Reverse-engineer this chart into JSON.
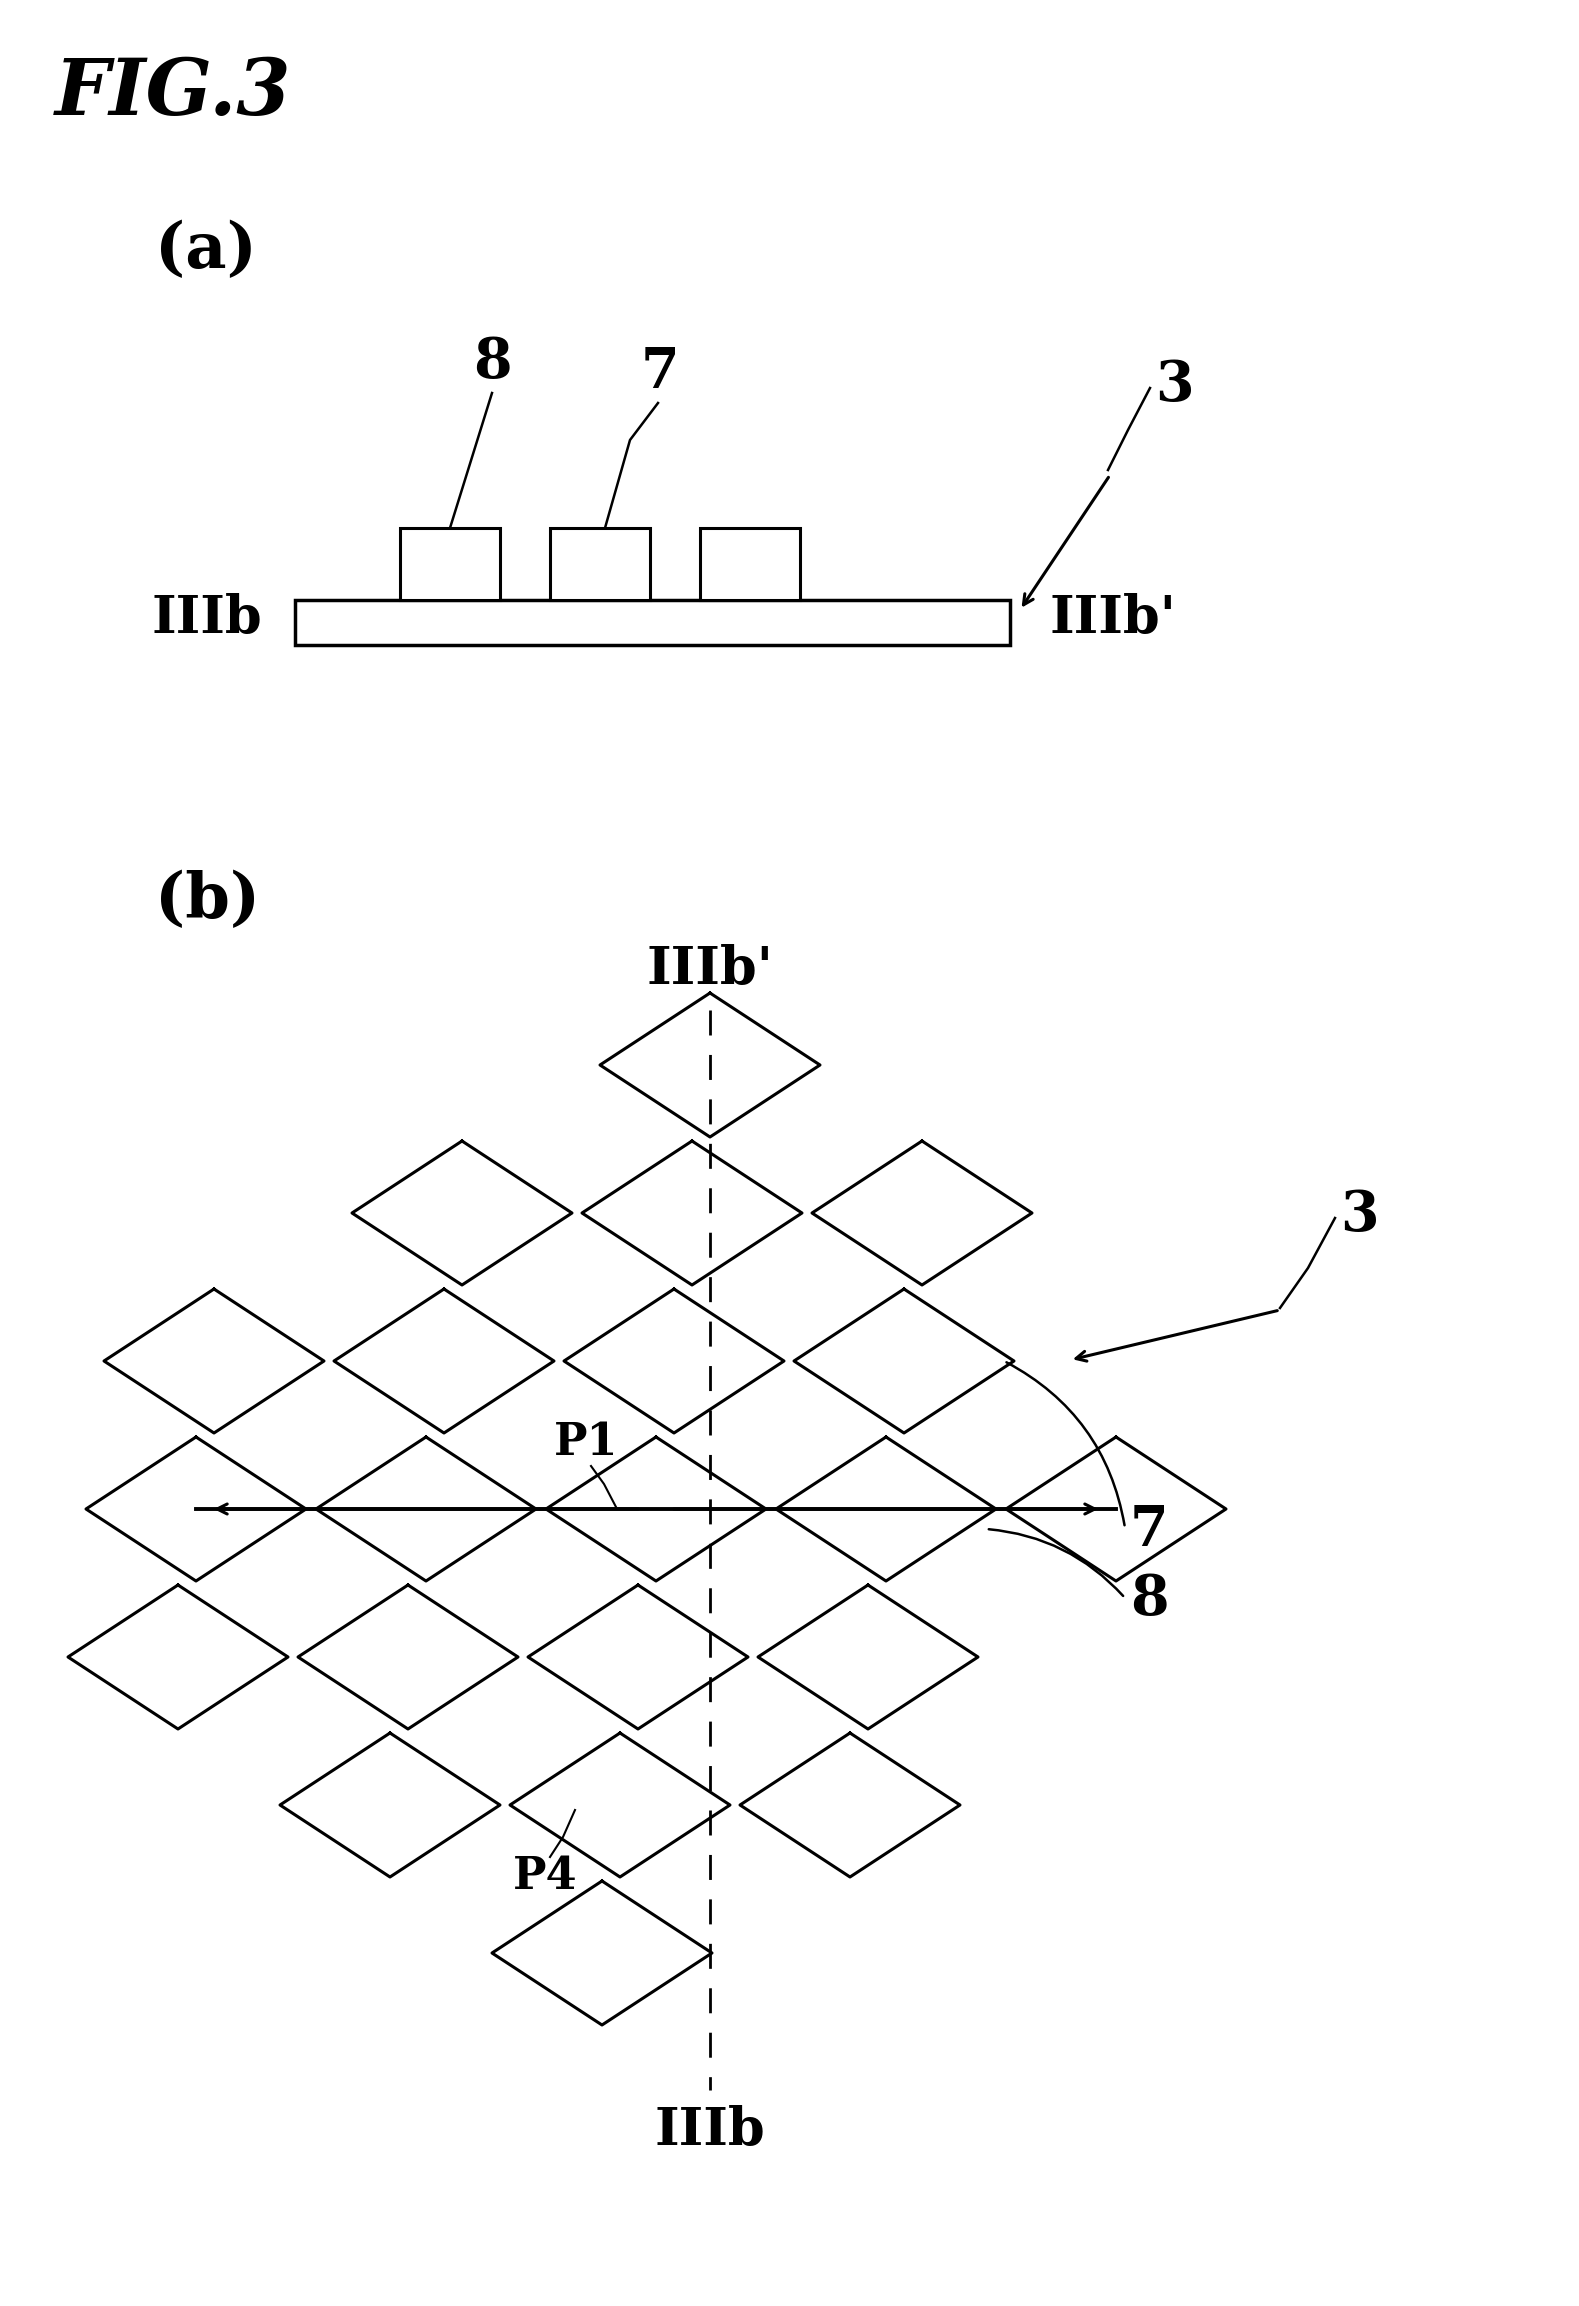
{
  "fig_title": "FIG.3",
  "bg_color": "#ffffff",
  "panel_a_label": "(a)",
  "panel_b_label": "(b)",
  "label_8": "8",
  "label_7": "7",
  "label_3": "3",
  "label_IIIb": "IIIb",
  "label_IIIbp": "IIIb’",
  "label_P1": "P1",
  "label_P4": "P4",
  "black": "#000000"
}
